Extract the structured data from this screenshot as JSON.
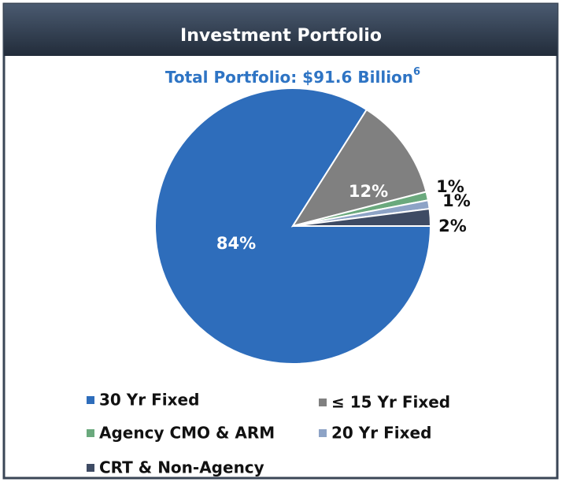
{
  "chart_data": {
    "type": "pie",
    "title": "Investment Portfolio",
    "subtitle": "Total Portfolio: $91.6 Billion",
    "subtitle_note": "6",
    "categories": [
      "30 Yr Fixed",
      "≤ 15 Yr Fixed",
      "Agency CMO & ARM",
      "20 Yr Fixed",
      "CRT & Non-Agency"
    ],
    "values": [
      84,
      12,
      1,
      1,
      2
    ],
    "value_labels": [
      "84%",
      "12%",
      "1%",
      "1%",
      "2%"
    ],
    "colors": [
      "#2e6dbb",
      "#808080",
      "#6aa97d",
      "#8da3c6",
      "#3e4b64"
    ],
    "legend": "bottom"
  }
}
